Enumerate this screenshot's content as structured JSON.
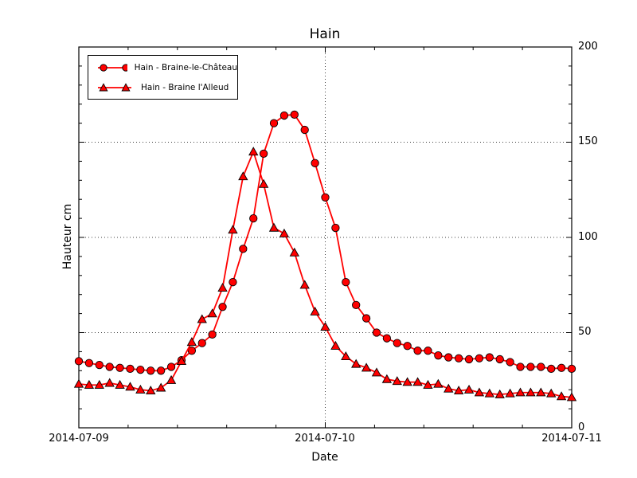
{
  "chart_data": {
    "type": "line",
    "title": "Hain",
    "xlabel": "Date",
    "ylabel": "Hauteur cm",
    "x_tick_labels": [
      "2014-07-09",
      "2014-07-10",
      "2014-07-11"
    ],
    "x_tick_hours": [
      0,
      24,
      48
    ],
    "x_minor_tick_step_hours": 4.8,
    "y_tick_labels": [
      "0",
      "50",
      "100",
      "150",
      "200"
    ],
    "y_ticks": [
      0,
      50,
      100,
      150,
      200
    ],
    "y_minor_tick_step": 10,
    "ylim": [
      0,
      200
    ],
    "xlim_hours": [
      0,
      48
    ],
    "x_start": "2014-07-09 00:00",
    "x_step_hours": 1,
    "grid": {
      "horizontal_at": [
        50,
        100,
        150
      ],
      "vertical_at_hours": [
        24
      ],
      "style": "dotted"
    },
    "legend_position": "upper-left",
    "line_color": "#ff0000",
    "marker_edge_color": "#000000",
    "series": [
      {
        "name": "Hain - Braine-le-Château",
        "marker": "circle",
        "values": [
          35,
          34,
          33,
          32,
          31.5,
          31,
          30.5,
          30,
          30,
          32,
          35.5,
          40.5,
          44.5,
          49,
          63.5,
          76.5,
          94,
          110,
          144,
          160,
          164,
          164.5,
          156.5,
          139,
          121,
          105,
          76.5,
          64.5,
          57.5,
          50,
          47,
          44.5,
          43,
          40.5,
          40.5,
          38,
          37,
          36.5,
          36,
          36.5,
          37,
          36,
          34.5,
          32,
          32,
          32,
          31,
          31.5,
          31
        ]
      },
      {
        "name": "Hain - Braine l'Alleud",
        "marker": "triangle",
        "values": [
          23,
          22.5,
          22.5,
          23.5,
          22.5,
          21.5,
          20,
          19.5,
          21,
          25,
          35,
          45,
          57,
          60,
          73.5,
          104,
          132,
          145,
          128,
          105,
          102,
          92,
          75,
          61,
          53,
          43,
          37.5,
          33.5,
          31.5,
          29,
          25.5,
          24.5,
          24,
          24,
          22.5,
          23,
          20.5,
          19.5,
          20,
          18.5,
          18,
          17.5,
          18,
          18.5,
          18.5,
          18.5,
          18,
          16.5,
          16
        ]
      }
    ]
  }
}
